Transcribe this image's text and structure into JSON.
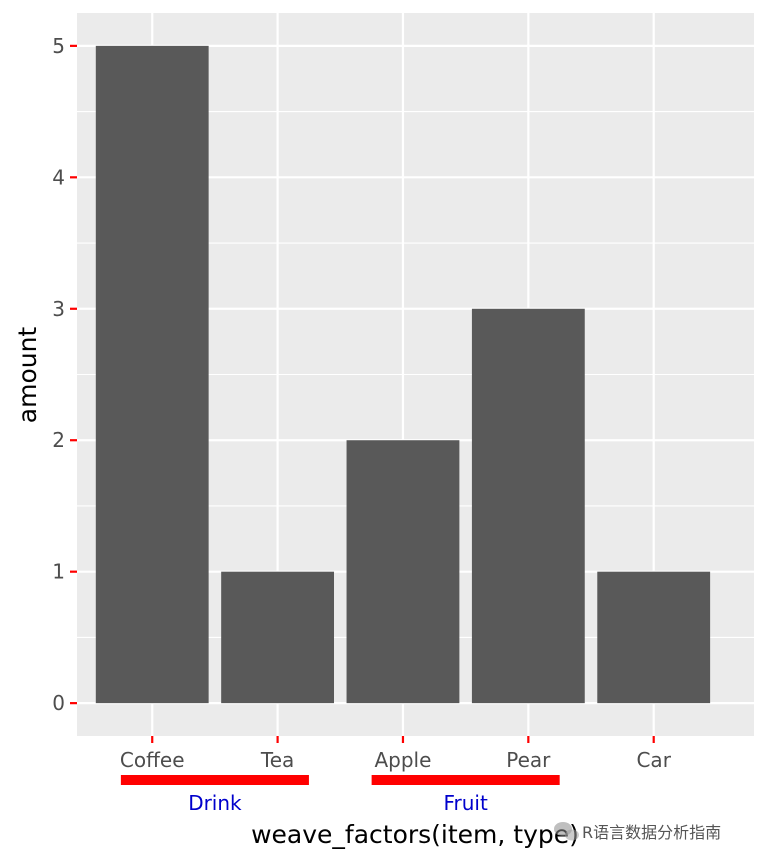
{
  "chart_data": {
    "type": "bar",
    "categories": [
      "Coffee",
      "Tea",
      "Apple",
      "Pear",
      "Car"
    ],
    "values": [
      5,
      1,
      2,
      3,
      1
    ],
    "title": "",
    "xlabel": "weave_factors(item, type)",
    "ylabel": "amount",
    "ylim": [
      -0.25,
      5.25
    ],
    "y_ticks": [
      0,
      1,
      2,
      3,
      4,
      5
    ],
    "grid": true,
    "groups": [
      {
        "label": "Drink",
        "members": [
          "Coffee",
          "Tea"
        ]
      },
      {
        "label": "Fruit",
        "members": [
          "Apple",
          "Pear"
        ]
      }
    ]
  },
  "colors": {
    "panel_background": "#ebebeb",
    "grid": "#ffffff",
    "bar": "#595959",
    "tick_mark": "#ff0000",
    "group_bracket": "#ff0000",
    "group_label": "#0000cc"
  },
  "watermark": {
    "text": "R语言数据分析指南",
    "icon": "wechat-icon"
  }
}
